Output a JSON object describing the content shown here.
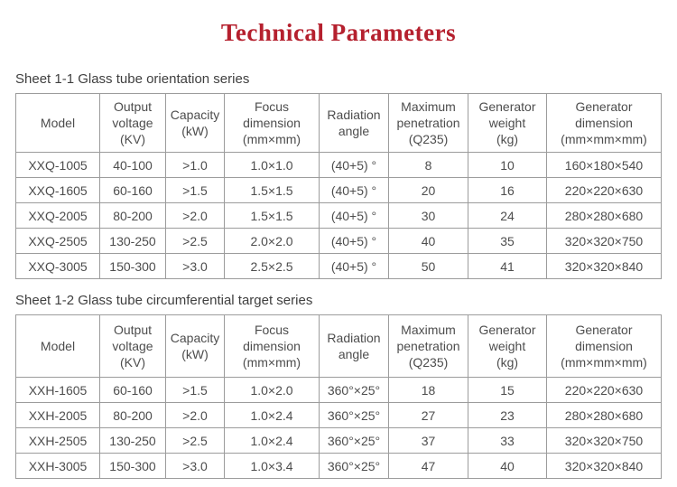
{
  "page": {
    "title": "Technical Parameters"
  },
  "colors": {
    "title_red": "#b5202e",
    "table_text_gray": "#4d4d4d",
    "border_gray": "#9c9c9c"
  },
  "tables": [
    {
      "caption": "Sheet 1-1 Glass tube orientation series",
      "headers": [
        "Model",
        "Output\nvoltage\n(KV)",
        "Capacity\n(kW)",
        "Focus\ndimension\n(mm×mm)",
        "Radiation\nangle",
        "Maximum\npenetration\n(Q235)",
        "Generator\nweight\n(kg)",
        "Generator dimension\n(mm×mm×mm)"
      ],
      "rows": [
        [
          "XXQ-1005",
          "40-100",
          ">1.0",
          "1.0×1.0",
          "(40+5) °",
          "8",
          "10",
          "160×180×540"
        ],
        [
          "XXQ-1605",
          "60-160",
          ">1.5",
          "1.5×1.5",
          "(40+5) °",
          "20",
          "16",
          "220×220×630"
        ],
        [
          "XXQ-2005",
          "80-200",
          ">2.0",
          "1.5×1.5",
          "(40+5) °",
          "30",
          "24",
          "280×280×680"
        ],
        [
          "XXQ-2505",
          "130-250",
          ">2.5",
          "2.0×2.0",
          "(40+5) °",
          "40",
          "35",
          "320×320×750"
        ],
        [
          "XXQ-3005",
          "150-300",
          ">3.0",
          "2.5×2.5",
          "(40+5) °",
          "50",
          "41",
          "320×320×840"
        ]
      ]
    },
    {
      "caption": "Sheet 1-2 Glass tube circumferential target series",
      "headers": [
        "Model",
        "Output\nvoltage\n(KV)",
        "Capacity\n(kW)",
        "Focus\ndimension\n(mm×mm)",
        "Radiation\nangle",
        "Maximum\npenetration\n(Q235)",
        "Generator\nweight\n(kg)",
        "Generator dimension\n(mm×mm×mm)"
      ],
      "rows": [
        [
          "XXH-1605",
          "60-160",
          ">1.5",
          "1.0×2.0",
          "360°×25°",
          "18",
          "15",
          "220×220×630"
        ],
        [
          "XXH-2005",
          "80-200",
          ">2.0",
          "1.0×2.4",
          "360°×25°",
          "27",
          "23",
          "280×280×680"
        ],
        [
          "XXH-2505",
          "130-250",
          ">2.5",
          "1.0×2.4",
          "360°×25°",
          "37",
          "33",
          "320×320×750"
        ],
        [
          "XXH-3005",
          "150-300",
          ">3.0",
          "1.0×3.4",
          "360°×25°",
          "47",
          "40",
          "320×320×840"
        ]
      ]
    }
  ]
}
